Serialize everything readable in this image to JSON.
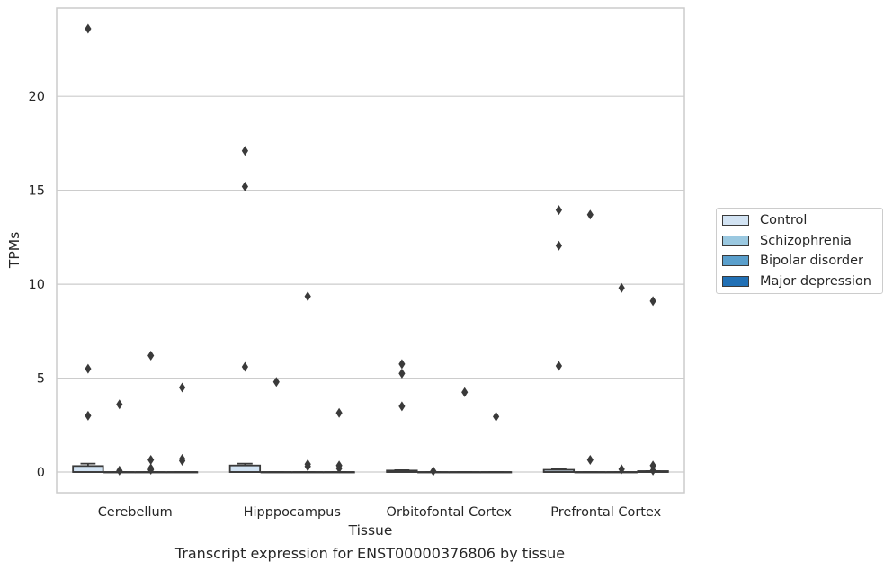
{
  "chart_data": {
    "type": "box",
    "title": "",
    "caption": "Transcript expression for ENST00000376806 by tissue",
    "xlabel": "Tissue",
    "ylabel": "TPMs",
    "ylim": [
      -1.1,
      24.7
    ],
    "yticks": [
      0,
      5,
      10,
      15,
      20
    ],
    "grid": "horizontal",
    "legend_position": "right",
    "categories": [
      "Cerebellum",
      "Hipppocampus",
      "Orbitofontal Cortex",
      "Prefrontal Cortex"
    ],
    "series": [
      {
        "name": "Control",
        "color": "#d2e3f3",
        "boxes": [
          {
            "q1": 0.0,
            "median": 0.0,
            "q3": 0.32,
            "whisker_low": 0.0,
            "whisker_high": 0.45,
            "outliers": [
              23.6,
              5.5,
              3.0
            ]
          },
          {
            "q1": 0.0,
            "median": 0.0,
            "q3": 0.35,
            "whisker_low": 0.0,
            "whisker_high": 0.45,
            "outliers": [
              17.1,
              15.2,
              5.6
            ]
          },
          {
            "q1": 0.0,
            "median": 0.0,
            "q3": 0.08,
            "whisker_low": 0.0,
            "whisker_high": 0.1,
            "outliers": [
              5.75,
              5.25,
              3.5
            ]
          },
          {
            "q1": 0.0,
            "median": 0.0,
            "q3": 0.12,
            "whisker_low": 0.0,
            "whisker_high": 0.18,
            "outliers": [
              13.95,
              12.05,
              5.65
            ]
          }
        ]
      },
      {
        "name": "Schizophrenia",
        "color": "#9ac8e0",
        "boxes": [
          {
            "q1": 0.0,
            "median": 0.0,
            "q3": 0.0,
            "whisker_low": 0.0,
            "whisker_high": 0.0,
            "outliers": [
              3.6,
              0.08
            ]
          },
          {
            "q1": 0.0,
            "median": 0.0,
            "q3": 0.0,
            "whisker_low": 0.0,
            "whisker_high": 0.0,
            "outliers": [
              4.8
            ]
          },
          {
            "q1": 0.0,
            "median": 0.0,
            "q3": 0.0,
            "whisker_low": 0.0,
            "whisker_high": 0.0,
            "outliers": [
              0.05
            ]
          },
          {
            "q1": 0.0,
            "median": 0.0,
            "q3": 0.0,
            "whisker_low": 0.0,
            "whisker_high": 0.0,
            "outliers": [
              13.7,
              0.65
            ]
          }
        ]
      },
      {
        "name": "Bipolar disorder",
        "color": "#5a9fcc",
        "boxes": [
          {
            "q1": 0.0,
            "median": 0.0,
            "q3": 0.0,
            "whisker_low": 0.0,
            "whisker_high": 0.0,
            "outliers": [
              6.2,
              0.65,
              0.12,
              0.2
            ]
          },
          {
            "q1": 0.0,
            "median": 0.0,
            "q3": 0.0,
            "whisker_low": 0.0,
            "whisker_high": 0.0,
            "outliers": [
              9.35,
              0.42,
              0.3
            ]
          },
          {
            "q1": 0.0,
            "median": 0.0,
            "q3": 0.0,
            "whisker_low": 0.0,
            "whisker_high": 0.0,
            "outliers": [
              4.25
            ]
          },
          {
            "q1": 0.0,
            "median": 0.0,
            "q3": 0.0,
            "whisker_low": 0.0,
            "whisker_high": 0.0,
            "outliers": [
              9.8,
              0.15
            ]
          }
        ]
      },
      {
        "name": "Major depression",
        "color": "#2170b5",
        "boxes": [
          {
            "q1": 0.0,
            "median": 0.0,
            "q3": 0.0,
            "whisker_low": 0.0,
            "whisker_high": 0.0,
            "outliers": [
              4.5,
              0.7,
              0.6
            ]
          },
          {
            "q1": 0.0,
            "median": 0.0,
            "q3": 0.0,
            "whisker_low": 0.0,
            "whisker_high": 0.0,
            "outliers": [
              3.15,
              0.35,
              0.2
            ]
          },
          {
            "q1": 0.0,
            "median": 0.0,
            "q3": 0.0,
            "whisker_low": 0.0,
            "whisker_high": 0.0,
            "outliers": [
              2.95
            ]
          },
          {
            "q1": 0.0,
            "median": 0.0,
            "q3": 0.05,
            "whisker_low": 0.0,
            "whisker_high": 0.05,
            "outliers": [
              9.1,
              0.35,
              0.08
            ]
          }
        ]
      }
    ]
  }
}
